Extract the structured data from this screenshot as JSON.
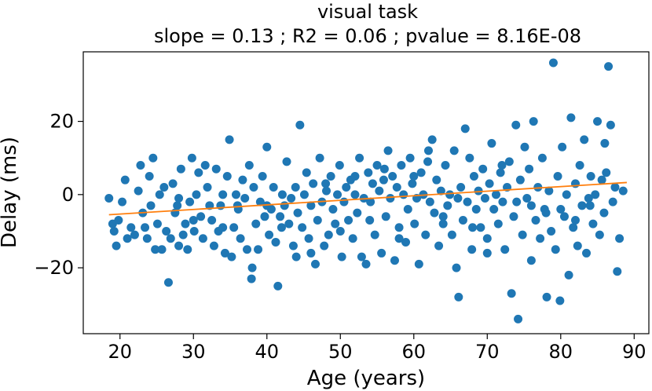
{
  "chart_data": {
    "type": "scatter",
    "title": "visual task",
    "subtitle": "slope = 0.13 ; R2 = 0.06 ; pvalue = 8.16E-08",
    "xlabel": "Age (years)",
    "ylabel": "Delay (ms)",
    "xlim": [
      15,
      92
    ],
    "ylim": [
      -38,
      39
    ],
    "xticks": [
      20,
      30,
      40,
      50,
      60,
      70,
      80,
      90
    ],
    "yticks": [
      -20,
      0,
      20
    ],
    "ytick_labels": [
      "−20",
      "0",
      "20"
    ],
    "grid": false,
    "colors": {
      "points": "#1f77b4",
      "fit": "#ff7f0e"
    },
    "fit_line": {
      "x": [
        18.5,
        89
      ],
      "y": [
        -5.5,
        3.3
      ]
    },
    "series": [
      {
        "points": [
          [
            18.5,
            -1
          ],
          [
            19,
            -8
          ],
          [
            19.2,
            -10
          ],
          [
            19.5,
            -14
          ],
          [
            19.8,
            -7
          ],
          [
            20.3,
            -2
          ],
          [
            20.7,
            4
          ],
          [
            21,
            -12
          ],
          [
            21.5,
            -9
          ],
          [
            22,
            -11
          ],
          [
            22.5,
            1
          ],
          [
            22.8,
            8
          ],
          [
            23.1,
            -5
          ],
          [
            23.4,
            -9
          ],
          [
            23.7,
            -12
          ],
          [
            24,
            5
          ],
          [
            24.2,
            -3
          ],
          [
            24.5,
            10
          ],
          [
            24.8,
            -15
          ],
          [
            25.1,
            -8
          ],
          [
            25.4,
            0
          ],
          [
            25.7,
            -15
          ],
          [
            26,
            2
          ],
          [
            26.3,
            -10
          ],
          [
            26.6,
            -24
          ],
          [
            26.9,
            -12
          ],
          [
            27.2,
            3
          ],
          [
            27.5,
            -5
          ],
          [
            27.8,
            -3
          ],
          [
            28,
            -14
          ],
          [
            28.3,
            7
          ],
          [
            28.6,
            -11
          ],
          [
            28.9,
            -8
          ],
          [
            29.2,
            -15
          ],
          [
            29.5,
            -2
          ],
          [
            29.8,
            10
          ],
          [
            30.1,
            -10
          ],
          [
            30.4,
            0
          ],
          [
            30.7,
            6
          ],
          [
            31,
            -6
          ],
          [
            31.3,
            -12
          ],
          [
            31.6,
            8
          ],
          [
            31.9,
            2
          ],
          [
            32.2,
            -3
          ],
          [
            32.5,
            -7
          ],
          [
            32.8,
            -14
          ],
          [
            33.1,
            7
          ],
          [
            33.4,
            -10
          ],
          [
            33.7,
            -3
          ],
          [
            34,
            0
          ],
          [
            34.3,
            -16
          ],
          [
            34.6,
            5
          ],
          [
            34.9,
            15
          ],
          [
            35.2,
            -17
          ],
          [
            35.5,
            -9
          ],
          [
            35.8,
            0
          ],
          [
            36.1,
            -4
          ],
          [
            36.4,
            -12
          ],
          [
            36.7,
            4
          ],
          [
            37,
            -1
          ],
          [
            37.3,
            -15
          ],
          [
            37.6,
            8
          ],
          [
            37.9,
            -23
          ],
          [
            38.2,
            2
          ],
          [
            38.5,
            -8
          ],
          [
            38.8,
            -15
          ],
          [
            39.1,
            -2
          ],
          [
            39.4,
            5
          ],
          [
            39.7,
            -6
          ],
          [
            40,
            13
          ],
          [
            40.3,
            -11
          ],
          [
            40.6,
            -4
          ],
          [
            40.9,
            2
          ],
          [
            41.2,
            -13
          ],
          [
            41.5,
            -25
          ],
          [
            41.8,
            -6
          ],
          [
            42.1,
            0
          ],
          [
            42.4,
            -3
          ],
          [
            42.7,
            9
          ],
          [
            43,
            -8
          ],
          [
            43.3,
            -1
          ],
          [
            43.6,
            -14
          ],
          [
            43.9,
            2
          ],
          [
            44.2,
            -5
          ],
          [
            44.5,
            19
          ],
          [
            44.8,
            -9
          ],
          [
            45.1,
            0
          ],
          [
            45.4,
            6
          ],
          [
            45.7,
            -12
          ],
          [
            46,
            -3
          ],
          [
            46.3,
            3
          ],
          [
            46.6,
            -19
          ],
          [
            46.9,
            -7
          ],
          [
            47.2,
            10
          ],
          [
            47.5,
            -2
          ],
          [
            47.8,
            -14
          ],
          [
            48.1,
            1
          ],
          [
            48.4,
            -11
          ],
          [
            48.7,
            5
          ],
          [
            49,
            -4
          ],
          [
            49.3,
            -8
          ],
          [
            49.6,
            0
          ],
          [
            49.9,
            8
          ],
          [
            50.2,
            -17
          ],
          [
            50.5,
            -2
          ],
          [
            50.8,
            2
          ],
          [
            51.1,
            -7
          ],
          [
            51.4,
            4
          ],
          [
            51.7,
            -12
          ],
          [
            52,
            0
          ],
          [
            52.3,
            -5
          ],
          [
            52.6,
            10
          ],
          [
            52.9,
            -17
          ],
          [
            53.2,
            -1
          ],
          [
            53.5,
            -19
          ],
          [
            53.8,
            6
          ],
          [
            54.1,
            -2
          ],
          [
            54.4,
            3
          ],
          [
            54.7,
            -11
          ],
          [
            55,
            8
          ],
          [
            55.3,
            1
          ],
          [
            55.6,
            -16
          ],
          [
            55.9,
            4
          ],
          [
            56.2,
            -6
          ],
          [
            56.5,
            12
          ],
          [
            56.8,
            -1
          ],
          [
            57.1,
            5
          ],
          [
            57.4,
            -18
          ],
          [
            57.7,
            2
          ],
          [
            58,
            -9
          ],
          [
            58.3,
            8
          ],
          [
            58.6,
            0
          ],
          [
            58.9,
            -13
          ],
          [
            59.2,
            -4
          ],
          [
            59.5,
            10
          ],
          [
            59.8,
            3
          ],
          [
            60.1,
            -8
          ],
          [
            60.4,
            -1
          ],
          [
            60.7,
            -19
          ],
          [
            61,
            6
          ],
          [
            61.3,
            0
          ],
          [
            61.6,
            -11
          ],
          [
            61.9,
            9
          ],
          [
            62.2,
            -2
          ],
          [
            62.5,
            15
          ],
          [
            62.8,
            -5
          ],
          [
            63.1,
            4
          ],
          [
            63.4,
            -14
          ],
          [
            63.7,
            1
          ],
          [
            64,
            -6
          ],
          [
            64.3,
            8
          ],
          [
            64.6,
            -3
          ],
          [
            64.9,
            0
          ],
          [
            65.2,
            -11
          ],
          [
            65.5,
            12
          ],
          [
            65.8,
            -20
          ],
          [
            66.1,
            -28
          ],
          [
            66.4,
            2
          ],
          [
            66.7,
            -7
          ],
          [
            67,
            18
          ],
          [
            67.3,
            -2
          ],
          [
            67.6,
            10
          ],
          [
            67.9,
            -15
          ],
          [
            68.2,
            5
          ],
          [
            68.5,
            -4
          ],
          [
            68.8,
            1
          ],
          [
            69.1,
            -9
          ],
          [
            69.4,
            7
          ],
          [
            69.7,
            -1
          ],
          [
            70,
            -12
          ],
          [
            70.3,
            3
          ],
          [
            70.6,
            14
          ],
          [
            70.9,
            -4
          ],
          [
            71.2,
            0
          ],
          [
            71.5,
            -8
          ],
          [
            71.8,
            6
          ],
          [
            72.1,
            -2
          ],
          [
            72.4,
            -15
          ],
          [
            72.7,
            2
          ],
          [
            73,
            9
          ],
          [
            73.3,
            -27
          ],
          [
            73.6,
            -6
          ],
          [
            73.9,
            19
          ],
          [
            74.2,
            -34
          ],
          [
            74.5,
            4
          ],
          [
            74.8,
            -11
          ],
          [
            75.1,
            13
          ],
          [
            75.4,
            -1
          ],
          [
            75.7,
            7
          ],
          [
            76,
            -18
          ],
          [
            76.3,
            20
          ],
          [
            76.6,
            -7
          ],
          [
            76.9,
            2
          ],
          [
            77.2,
            -12
          ],
          [
            77.5,
            10
          ],
          [
            77.8,
            -4
          ],
          [
            78.1,
            -28
          ],
          [
            78.4,
            1
          ],
          [
            78.7,
            -10
          ],
          [
            79,
            36
          ],
          [
            79.3,
            -15
          ],
          [
            79.6,
            5
          ],
          [
            79.9,
            -29
          ],
          [
            80.2,
            13
          ],
          [
            80.5,
            -6
          ],
          [
            80.8,
            0
          ],
          [
            81.1,
            -22
          ],
          [
            81.4,
            21
          ],
          [
            81.7,
            -9
          ],
          [
            82,
            3
          ],
          [
            82.3,
            -14
          ],
          [
            82.6,
            8
          ],
          [
            82.9,
            -3
          ],
          [
            83.2,
            15
          ],
          [
            83.5,
            -16
          ],
          [
            83.8,
            -1
          ],
          [
            84.1,
            5
          ],
          [
            84.4,
            -8
          ],
          [
            84.7,
            0
          ],
          [
            85,
            20
          ],
          [
            85.3,
            -11
          ],
          [
            85.6,
            4
          ],
          [
            85.9,
            -5
          ],
          [
            86.2,
            6
          ],
          [
            86.5,
            35
          ],
          [
            86.8,
            19
          ],
          [
            87.1,
            -2
          ],
          [
            87.4,
            2
          ],
          [
            87.7,
            -21
          ],
          [
            88,
            -12
          ],
          [
            88.5,
            1
          ],
          [
            36,
            -3
          ],
          [
            42,
            -9
          ],
          [
            48,
            3
          ],
          [
            54,
            -7
          ],
          [
            60,
            5
          ],
          [
            66,
            -1
          ],
          [
            72,
            8
          ],
          [
            78,
            -5
          ],
          [
            84,
            -3
          ],
          [
            30,
            -7
          ],
          [
            50,
            -10
          ],
          [
            56,
            7
          ],
          [
            58,
            -12
          ],
          [
            62,
            12
          ],
          [
            68,
            -9
          ],
          [
            74,
            -2
          ],
          [
            80,
            -4
          ],
          [
            34,
            -9
          ],
          [
            46,
            -16
          ],
          [
            52,
            5
          ],
          [
            64,
            -8
          ],
          [
            70,
            -16
          ],
          [
            76,
            -3
          ],
          [
            28,
            -1
          ],
          [
            40,
            -3
          ],
          [
            44,
            -17
          ],
          [
            82,
            -7
          ],
          [
            86,
            14
          ],
          [
            38,
            -20
          ]
        ]
      }
    ]
  }
}
